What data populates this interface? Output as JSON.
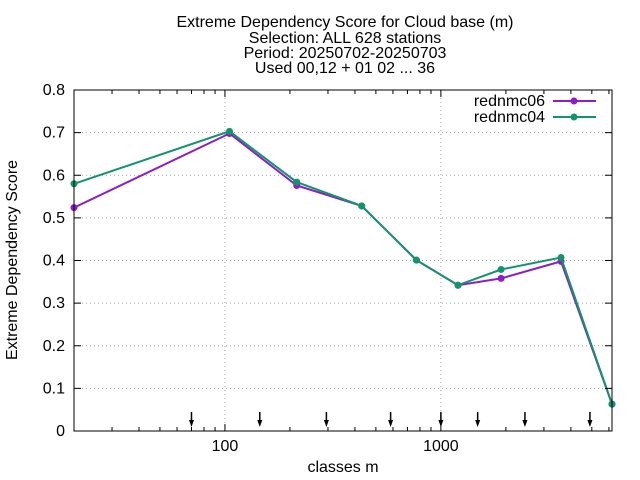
{
  "chart_data": {
    "type": "line",
    "title_lines": [
      "Extreme Dependency Score  for Cloud base (m)",
      "Selection: ALL    628 stations",
      "Period: 20250702-20250703",
      "Used 00,12 + 01 02 ... 36"
    ],
    "xlabel": "classes m",
    "ylabel": "Extreme Dependency Score",
    "x_scale": "log",
    "xlim": [
      20,
      6200
    ],
    "ylim": [
      0,
      0.8
    ],
    "y_ticks": [
      0,
      0.1,
      0.2,
      0.3,
      0.4,
      0.5,
      0.6,
      0.7,
      0.8
    ],
    "y_tick_labels": [
      "0",
      "0.1",
      "0.2",
      "0.3",
      "0.4",
      "0.5",
      "0.6",
      "0.7",
      "0.8"
    ],
    "x_ticks": [
      100,
      1000
    ],
    "x_tick_labels": [
      "100",
      "1000"
    ],
    "grid": true,
    "legend_position": "top-right",
    "series": [
      {
        "name": "rednmc06",
        "color": "#8b1ec4",
        "x": [
          20,
          105,
          215,
          430,
          770,
          1200,
          1900,
          3600,
          6200
        ],
        "y": [
          0.524,
          0.698,
          0.576,
          0.528,
          0.401,
          0.342,
          0.358,
          0.398,
          0.063
        ]
      },
      {
        "name": "rednmc04",
        "color": "#12946c",
        "x": [
          20,
          105,
          215,
          430,
          770,
          1200,
          1900,
          3600,
          6200
        ],
        "y": [
          0.58,
          0.703,
          0.584,
          0.528,
          0.401,
          0.342,
          0.379,
          0.407,
          0.063
        ]
      }
    ],
    "annotation_arrows_x": [
      70,
      145,
      295,
      585,
      1000,
      1480,
      2450,
      4900
    ]
  }
}
